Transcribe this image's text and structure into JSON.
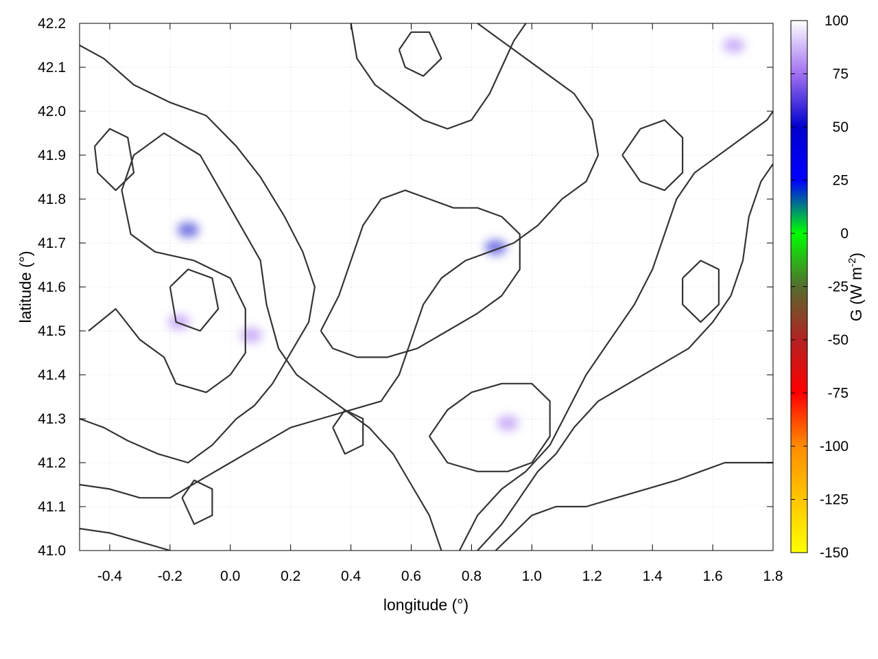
{
  "chart_data": {
    "type": "heatmap",
    "xlabel": "longitude (°)",
    "ylabel": "latitude (°)",
    "xlim": [
      -0.5,
      1.8
    ],
    "ylim": [
      41.0,
      42.2
    ],
    "x_ticks": [
      -0.4,
      -0.2,
      0.0,
      0.2,
      0.4,
      0.6,
      0.8,
      1.0,
      1.2,
      1.4,
      1.6,
      1.8
    ],
    "x_tick_labels": [
      "-0.4",
      "-0.2",
      "0.0",
      "0.2",
      "0.4",
      "0.6",
      "0.8",
      "1.0",
      "1.2",
      "1.4",
      "1.6",
      "1.8"
    ],
    "y_ticks": [
      41.0,
      41.1,
      41.2,
      41.3,
      41.4,
      41.5,
      41.6,
      41.7,
      41.8,
      41.9,
      42.0,
      42.1,
      42.2
    ],
    "y_tick_labels": [
      "41.0",
      "41.1",
      "41.2",
      "41.3",
      "41.4",
      "41.5",
      "41.6",
      "41.7",
      "41.8",
      "41.9",
      "42.0",
      "42.1",
      "42.2"
    ],
    "grid": true,
    "colorbar": {
      "label_main": "G (W m",
      "label_sup": "-2",
      "label_end": ")",
      "range": [
        -150,
        100
      ],
      "ticks": [
        100,
        75,
        50,
        25,
        0,
        -25,
        -50,
        -75,
        -100,
        -125,
        -150
      ],
      "tick_labels": [
        "100",
        "75",
        "50",
        "25",
        "0",
        "-25",
        "-50",
        "-75",
        "-100",
        "-125",
        "-150"
      ],
      "stops": [
        {
          "value": -150,
          "color": "#ffff00"
        },
        {
          "value": -100,
          "color": "#ff8c00"
        },
        {
          "value": -75,
          "color": "#ff0000"
        },
        {
          "value": -50,
          "color": "#b22222"
        },
        {
          "value": -25,
          "color": "#556b2f"
        },
        {
          "value": 0,
          "color": "#00ff00"
        },
        {
          "value": 25,
          "color": "#0000ff"
        },
        {
          "value": 50,
          "color": "#0000cd"
        },
        {
          "value": 75,
          "color": "#a070f0"
        },
        {
          "value": 100,
          "color": "#ffffff"
        }
      ]
    },
    "field_hotspots": [
      {
        "lon": -0.14,
        "lat": 41.73,
        "value": 45
      },
      {
        "lon": 0.88,
        "lat": 41.69,
        "value": 45
      },
      {
        "lon": 0.07,
        "lat": 41.49,
        "value": 55
      },
      {
        "lon": -0.17,
        "lat": 41.52,
        "value": 60
      },
      {
        "lon": 0.92,
        "lat": 41.29,
        "value": 65
      },
      {
        "lon": 1.67,
        "lat": 42.15,
        "value": 75
      }
    ],
    "contours": [
      [
        [
          -0.47,
          41.5
        ],
        [
          -0.38,
          41.55
        ],
        [
          -0.3,
          41.48
        ],
        [
          -0.22,
          41.44
        ],
        [
          -0.18,
          41.38
        ],
        [
          -0.08,
          41.36
        ],
        [
          0.0,
          41.4
        ],
        [
          0.05,
          41.45
        ],
        [
          0.05,
          41.55
        ],
        [
          0.0,
          41.62
        ],
        [
          -0.12,
          41.66
        ],
        [
          -0.25,
          41.68
        ],
        [
          -0.33,
          41.72
        ],
        [
          -0.36,
          41.82
        ],
        [
          -0.32,
          41.9
        ],
        [
          -0.22,
          41.95
        ],
        [
          -0.1,
          41.9
        ],
        [
          -0.05,
          41.84
        ],
        [
          0.0,
          41.78
        ],
        [
          0.05,
          41.72
        ],
        [
          0.1,
          41.66
        ],
        [
          0.12,
          41.56
        ],
        [
          0.16,
          41.46
        ],
        [
          0.22,
          41.4
        ],
        [
          0.3,
          41.36
        ],
        [
          0.38,
          41.32
        ],
        [
          0.46,
          41.28
        ],
        [
          0.54,
          41.22
        ],
        [
          0.6,
          41.15
        ],
        [
          0.66,
          41.08
        ],
        [
          0.7,
          41.0
        ]
      ],
      [
        [
          -0.5,
          41.3
        ],
        [
          -0.42,
          41.28
        ],
        [
          -0.34,
          41.25
        ],
        [
          -0.24,
          41.22
        ],
        [
          -0.14,
          41.2
        ],
        [
          -0.06,
          41.24
        ],
        [
          0.02,
          41.3
        ],
        [
          0.08,
          41.33
        ],
        [
          0.14,
          41.38
        ],
        [
          0.2,
          41.45
        ],
        [
          0.26,
          41.52
        ],
        [
          0.28,
          41.6
        ],
        [
          0.24,
          41.68
        ],
        [
          0.18,
          41.76
        ],
        [
          0.1,
          41.85
        ],
        [
          0.02,
          41.92
        ],
        [
          -0.08,
          41.99
        ],
        [
          -0.2,
          42.02
        ],
        [
          -0.32,
          42.06
        ],
        [
          -0.42,
          42.12
        ],
        [
          -0.5,
          42.15
        ]
      ],
      [
        [
          -0.5,
          41.15
        ],
        [
          -0.4,
          41.14
        ],
        [
          -0.3,
          41.12
        ],
        [
          -0.2,
          41.12
        ],
        [
          -0.1,
          41.16
        ],
        [
          0.0,
          41.2
        ],
        [
          0.1,
          41.24
        ],
        [
          0.2,
          41.28
        ],
        [
          0.3,
          41.3
        ],
        [
          0.4,
          41.32
        ],
        [
          0.5,
          41.34
        ],
        [
          0.56,
          41.4
        ],
        [
          0.6,
          41.48
        ],
        [
          0.64,
          41.56
        ],
        [
          0.7,
          41.62
        ],
        [
          0.78,
          41.66
        ],
        [
          0.86,
          41.68
        ],
        [
          0.94,
          41.7
        ],
        [
          1.02,
          41.74
        ],
        [
          1.1,
          41.8
        ],
        [
          1.18,
          41.84
        ],
        [
          1.22,
          41.9
        ],
        [
          1.2,
          41.98
        ],
        [
          1.14,
          42.04
        ],
        [
          1.06,
          42.08
        ],
        [
          0.98,
          42.12
        ],
        [
          0.9,
          42.16
        ],
        [
          0.82,
          42.2
        ]
      ],
      [
        [
          0.76,
          41.0
        ],
        [
          0.82,
          41.08
        ],
        [
          0.9,
          41.14
        ],
        [
          0.98,
          41.18
        ],
        [
          1.06,
          41.24
        ],
        [
          1.12,
          41.32
        ],
        [
          1.18,
          41.4
        ],
        [
          1.26,
          41.48
        ],
        [
          1.34,
          41.56
        ],
        [
          1.4,
          41.64
        ],
        [
          1.44,
          41.72
        ],
        [
          1.48,
          41.8
        ],
        [
          1.54,
          41.86
        ],
        [
          1.62,
          41.9
        ],
        [
          1.7,
          41.94
        ],
        [
          1.78,
          41.98
        ],
        [
          1.8,
          42.0
        ]
      ],
      [
        [
          0.82,
          41.0
        ],
        [
          0.9,
          41.06
        ],
        [
          0.96,
          41.12
        ],
        [
          1.02,
          41.18
        ],
        [
          1.08,
          41.22
        ],
        [
          1.14,
          41.28
        ],
        [
          1.22,
          41.34
        ],
        [
          1.32,
          41.38
        ],
        [
          1.42,
          41.42
        ],
        [
          1.52,
          41.46
        ],
        [
          1.6,
          41.52
        ],
        [
          1.66,
          41.58
        ],
        [
          1.7,
          41.66
        ],
        [
          1.72,
          41.76
        ],
        [
          1.76,
          41.84
        ],
        [
          1.8,
          41.88
        ]
      ],
      [
        [
          0.88,
          41.0
        ],
        [
          0.94,
          41.04
        ],
        [
          1.0,
          41.08
        ],
        [
          1.08,
          41.1
        ],
        [
          1.18,
          41.1
        ],
        [
          1.28,
          41.12
        ],
        [
          1.38,
          41.14
        ],
        [
          1.48,
          41.16
        ],
        [
          1.56,
          41.18
        ],
        [
          1.64,
          41.2
        ],
        [
          1.72,
          41.2
        ],
        [
          1.8,
          41.2
        ]
      ],
      [
        [
          -0.5,
          41.05
        ],
        [
          -0.4,
          41.04
        ],
        [
          -0.3,
          41.02
        ],
        [
          -0.2,
          41.0
        ]
      ],
      [
        [
          0.3,
          41.5
        ],
        [
          0.36,
          41.58
        ],
        [
          0.4,
          41.66
        ],
        [
          0.44,
          41.74
        ],
        [
          0.5,
          41.8
        ],
        [
          0.58,
          41.82
        ],
        [
          0.66,
          41.8
        ],
        [
          0.74,
          41.78
        ],
        [
          0.82,
          41.78
        ],
        [
          0.9,
          41.76
        ],
        [
          0.96,
          41.72
        ],
        [
          0.96,
          41.64
        ],
        [
          0.9,
          41.58
        ],
        [
          0.82,
          41.54
        ],
        [
          0.72,
          41.5
        ],
        [
          0.62,
          41.46
        ],
        [
          0.52,
          41.44
        ],
        [
          0.42,
          41.44
        ],
        [
          0.34,
          41.46
        ],
        [
          0.3,
          41.5
        ]
      ],
      [
        [
          0.4,
          42.2
        ],
        [
          0.42,
          42.12
        ],
        [
          0.48,
          42.06
        ],
        [
          0.56,
          42.02
        ],
        [
          0.64,
          41.98
        ],
        [
          0.72,
          41.96
        ],
        [
          0.8,
          41.98
        ],
        [
          0.86,
          42.04
        ],
        [
          0.9,
          42.1
        ],
        [
          0.94,
          42.16
        ],
        [
          0.98,
          42.2
        ]
      ],
      [
        [
          0.66,
          41.26
        ],
        [
          0.72,
          41.32
        ],
        [
          0.8,
          41.36
        ],
        [
          0.9,
          41.38
        ],
        [
          1.0,
          41.38
        ],
        [
          1.06,
          41.34
        ],
        [
          1.06,
          41.26
        ],
        [
          1.0,
          41.2
        ],
        [
          0.92,
          41.18
        ],
        [
          0.82,
          41.18
        ],
        [
          0.72,
          41.2
        ],
        [
          0.66,
          41.26
        ]
      ],
      [
        [
          -0.2,
          41.6
        ],
        [
          -0.14,
          41.64
        ],
        [
          -0.06,
          41.62
        ],
        [
          -0.04,
          41.55
        ],
        [
          -0.1,
          41.5
        ],
        [
          -0.18,
          41.52
        ],
        [
          -0.2,
          41.6
        ]
      ],
      [
        [
          1.3,
          41.9
        ],
        [
          1.36,
          41.96
        ],
        [
          1.44,
          41.98
        ],
        [
          1.5,
          41.94
        ],
        [
          1.5,
          41.86
        ],
        [
          1.44,
          41.82
        ],
        [
          1.36,
          41.84
        ],
        [
          1.3,
          41.9
        ]
      ],
      [
        [
          1.5,
          41.62
        ],
        [
          1.56,
          41.66
        ],
        [
          1.62,
          41.64
        ],
        [
          1.62,
          41.56
        ],
        [
          1.56,
          41.52
        ],
        [
          1.5,
          41.56
        ],
        [
          1.5,
          41.62
        ]
      ],
      [
        [
          -0.45,
          41.92
        ],
        [
          -0.4,
          41.96
        ],
        [
          -0.34,
          41.94
        ],
        [
          -0.32,
          41.86
        ],
        [
          -0.38,
          41.82
        ],
        [
          -0.44,
          41.86
        ],
        [
          -0.45,
          41.92
        ]
      ],
      [
        [
          0.34,
          41.28
        ],
        [
          0.38,
          41.32
        ],
        [
          0.44,
          41.3
        ],
        [
          0.44,
          41.24
        ],
        [
          0.38,
          41.22
        ],
        [
          0.34,
          41.28
        ]
      ],
      [
        [
          -0.16,
          41.12
        ],
        [
          -0.12,
          41.16
        ],
        [
          -0.06,
          41.14
        ],
        [
          -0.06,
          41.08
        ],
        [
          -0.12,
          41.06
        ],
        [
          -0.16,
          41.12
        ]
      ],
      [
        [
          0.56,
          42.14
        ],
        [
          0.6,
          42.18
        ],
        [
          0.66,
          42.18
        ],
        [
          0.7,
          42.12
        ],
        [
          0.64,
          42.08
        ],
        [
          0.58,
          42.1
        ],
        [
          0.56,
          42.14
        ]
      ]
    ]
  }
}
